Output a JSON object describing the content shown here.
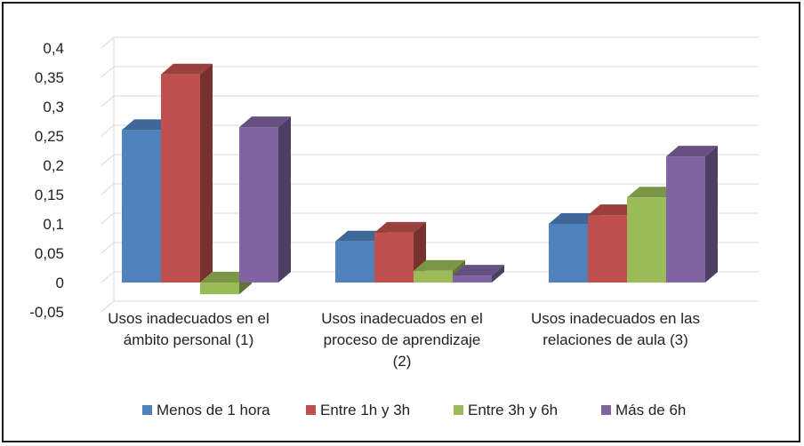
{
  "chart_data": {
    "type": "bar",
    "style": "3d-clustered-column",
    "categories": [
      [
        "Usos inadecuados  en el",
        "ámbito personal (1)"
      ],
      [
        "Usos inadecuados  en el",
        "proceso de aprendizaje",
        "(2)"
      ],
      [
        "Usos inadecuados  en las",
        "relaciones  de aula (3)"
      ]
    ],
    "series": [
      {
        "name": "Menos de 1 hora",
        "values": [
          0.26,
          0.07,
          0.1
        ]
      },
      {
        "name": "Entre 1h y 3h",
        "values": [
          0.355,
          0.085,
          0.115
        ]
      },
      {
        "name": "Entre 3h y 6h",
        "values": [
          -0.02,
          0.02,
          0.145
        ]
      },
      {
        "name": "Más de 6h",
        "values": [
          0.265,
          0.012,
          0.215
        ]
      }
    ],
    "colors": [
      "#4F81BD",
      "#C0504D",
      "#9BBB59",
      "#8064A2"
    ],
    "y_ticks": [
      "0,4",
      "0,35",
      "0,3",
      "0,25",
      "0,2",
      "0,15",
      "0,1",
      "0,05",
      "0",
      "-0,05"
    ],
    "ylim": [
      -0.05,
      0.4
    ],
    "grid": true,
    "legend_position": "bottom"
  }
}
